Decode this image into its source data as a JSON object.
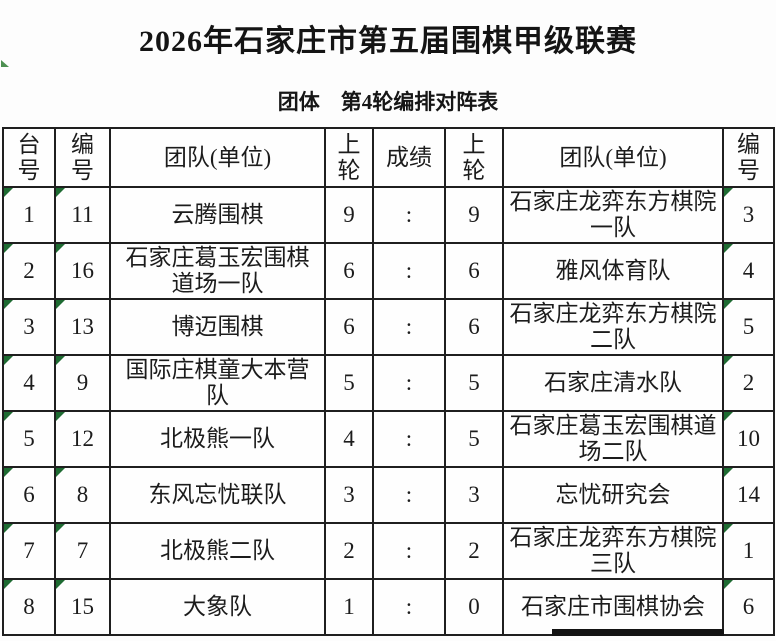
{
  "page": {
    "title": "2026年石家庄市第五届围棋甲级联赛",
    "subtitle": "团体　第4轮编排对阵表"
  },
  "table": {
    "headers": [
      "台\n号",
      "编\n号",
      "团队(单位)",
      "上\n轮",
      "成绩",
      "上\n轮",
      "团队(单位)",
      "编\n号"
    ],
    "rows": [
      [
        "1",
        "11",
        "云腾围棋",
        "9",
        ":",
        "9",
        "石家庄龙弈东方棋院一队",
        "3"
      ],
      [
        "2",
        "16",
        "石家庄葛玉宏围棋道场一队",
        "6",
        ":",
        "6",
        "雅风体育队",
        "4"
      ],
      [
        "3",
        "13",
        "博迈围棋",
        "6",
        ":",
        "6",
        "石家庄龙弈东方棋院二队",
        "5"
      ],
      [
        "4",
        "9",
        "国际庄棋童大本营队",
        "5",
        ":",
        "5",
        "石家庄清水队",
        "2"
      ],
      [
        "5",
        "12",
        "北极熊一队",
        "4",
        ":",
        "5",
        "石家庄葛玉宏围棋道场二队",
        "10"
      ],
      [
        "6",
        "8",
        "东风忘忧联队",
        "3",
        ":",
        "3",
        "忘忧研究会",
        "14"
      ],
      [
        "7",
        "7",
        "北极熊二队",
        "2",
        ":",
        "2",
        "石家庄龙弈东方棋院三队",
        "1"
      ],
      [
        "8",
        "15",
        "大象队",
        "1",
        ":",
        "0",
        "石家庄市围棋协会",
        "6"
      ]
    ]
  },
  "colors": {
    "corner_triangle": "#1e6b32",
    "artifact_mark": "#2e7d32",
    "border": "#1f1f1f"
  }
}
